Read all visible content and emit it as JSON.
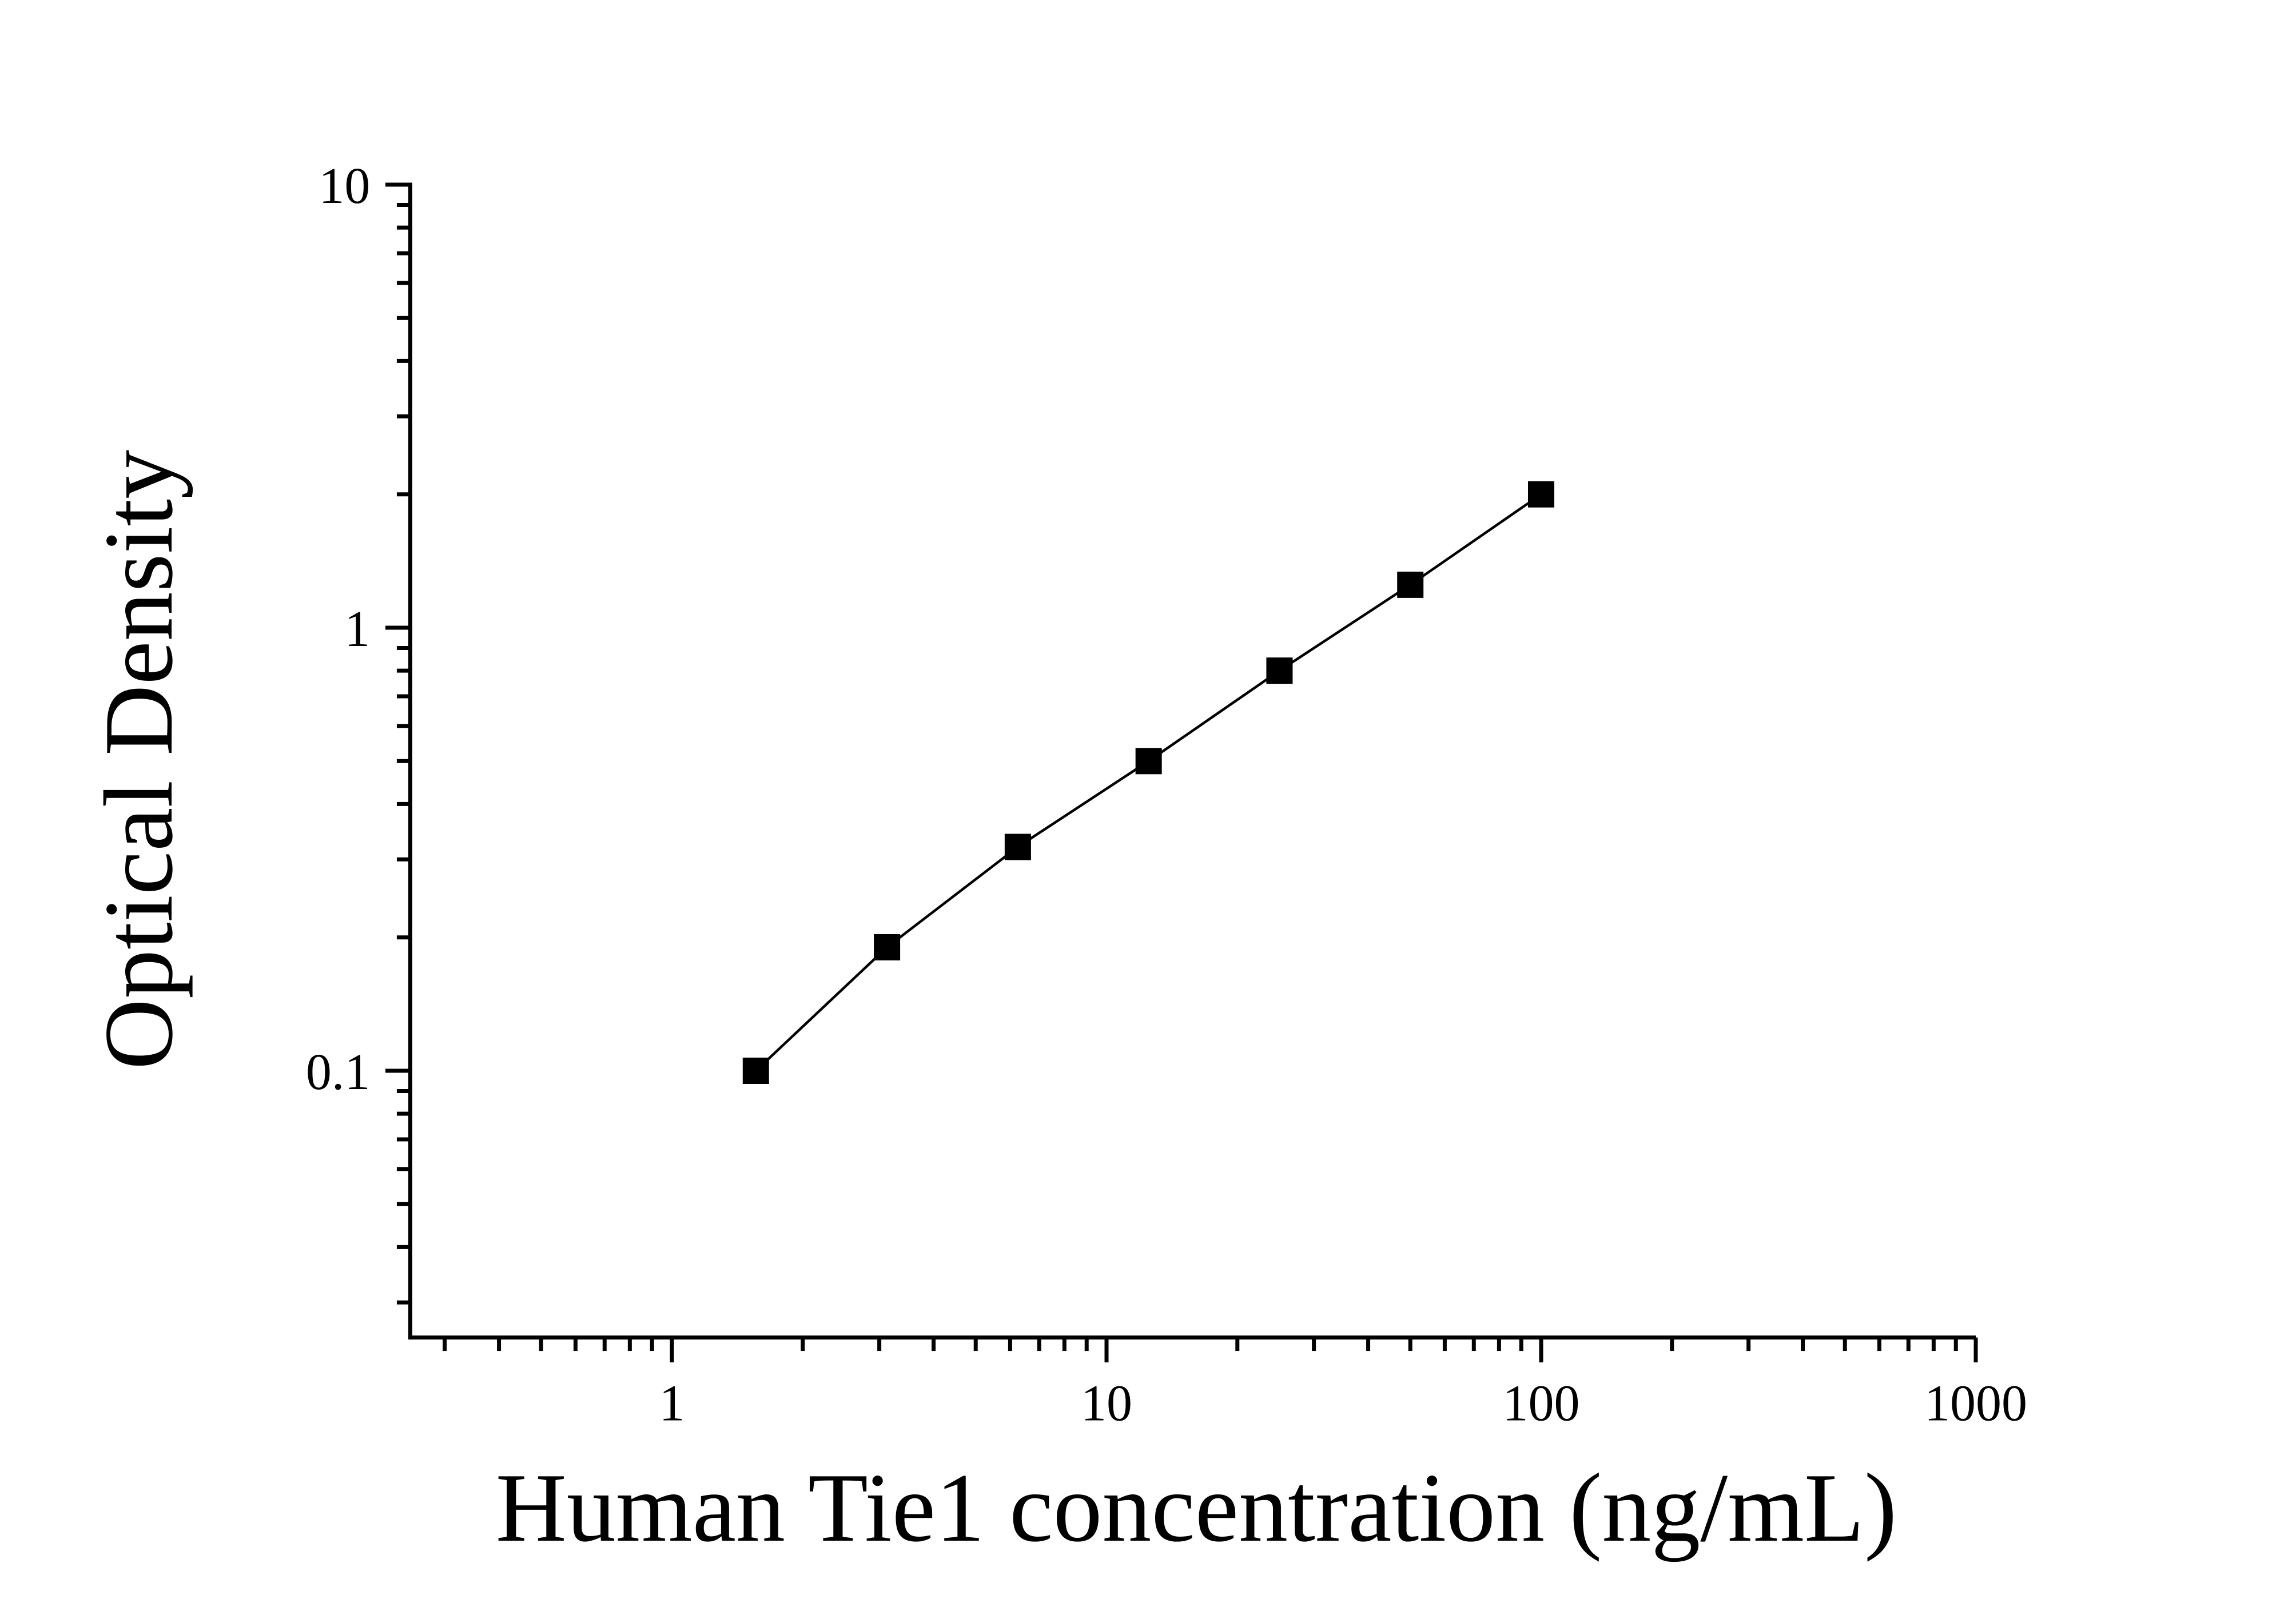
{
  "chart_data": {
    "type": "scatter",
    "subtype": "log-log standard curve with connecting line",
    "title": "",
    "xlabel": "Human Tie1 concentration (ng/mL)",
    "ylabel": "Optical Density",
    "x_scale": "log",
    "y_scale": "log",
    "x": [
      1.56,
      3.125,
      6.25,
      12.5,
      25,
      50,
      100
    ],
    "y": [
      0.1,
      0.19,
      0.32,
      0.5,
      0.8,
      1.25,
      2.0
    ],
    "x_major_ticks": [
      1,
      10,
      100,
      1000
    ],
    "x_major_tick_labels": [
      "1",
      "10",
      "100",
      "1000"
    ],
    "y_major_ticks": [
      0.1,
      1,
      10
    ],
    "y_major_tick_labels": [
      "0.1",
      "1",
      "10"
    ],
    "xlim": [
      0.25,
      1000
    ],
    "ylim": [
      0.025,
      10
    ],
    "grid": false,
    "legend": null,
    "marker": "filled-square",
    "line_style": "solid",
    "colors": {
      "line": "#000000",
      "marker": "#000000",
      "axis": "#000000",
      "text": "#000000",
      "background": "#ffffff"
    }
  }
}
